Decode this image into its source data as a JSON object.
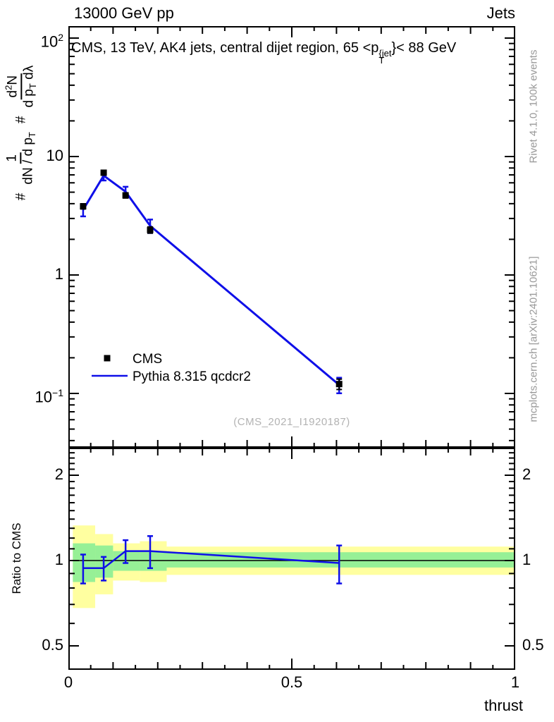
{
  "header": {
    "left": "13000 GeV pp",
    "right": "Jets"
  },
  "side_text": {
    "top": "Rivet 4.1.0,  100k events",
    "bottom": "mcplots.cern.ch [arXiv:2401.10621]"
  },
  "watermark": "(CMS_2021_I1920187)",
  "annotation_parts": {
    "pre": "CMS, 13 TeV, AK4 jets, central dijet region, 65 <p",
    "sup": "{jet",
    "sub": "T",
    "post": "}< 88 GeV"
  },
  "formula": {
    "hash1": "#",
    "num1": "1",
    "den1a": "dN / d p",
    "den1sub": "T",
    "hash2": "#",
    "num2a": "d",
    "num2sup": "2",
    "num2b": "N",
    "den2a": "d p",
    "den2sub": "T",
    "den2b": " d",
    "den2c": "λ"
  },
  "colors": {
    "model_blue": "#0f0fe8",
    "data_black": "#000000",
    "band_outer_yellow": "#ffffa0",
    "band_inner_green": "#96f096",
    "frame": "#000000",
    "gray_text": "#999999"
  },
  "chart_data": [
    {
      "type": "line",
      "panel": "main",
      "annotation": "CMS, 13 TeV, AK4 jets, central dijet region, 65 < p_T^{jet} < 88 GeV",
      "xlabel": "thrust",
      "ylabel": "# 1/(dN/d p_T) # d²N/(d p_T dλ)",
      "x_range": [
        0,
        1
      ],
      "y_range_log": [
        0.036,
        126
      ],
      "y_scale": "log10",
      "grid": false,
      "xticks": [
        0,
        0.5,
        1
      ],
      "yticks_major": [
        100,
        10,
        1,
        0.1
      ],
      "series": [
        {
          "name": "CMS",
          "style": "square-markers",
          "color": "#000000",
          "x": [
            0.033,
            0.079,
            0.128,
            0.183,
            0.606
          ],
          "y": [
            3.8,
            7.3,
            4.7,
            2.4,
            0.12
          ],
          "yerr_rel": [
            0.05,
            0.04,
            0.05,
            0.06,
            0.1
          ]
        },
        {
          "name": "Pythia 8.315 qcdcr2",
          "style": "line",
          "color": "#0f0fe8",
          "x": [
            0.033,
            0.079,
            0.128,
            0.183,
            0.606
          ],
          "y": [
            3.55,
            6.9,
            5.05,
            2.6,
            0.118
          ],
          "yerr_rel": [
            0.12,
            0.09,
            0.1,
            0.13,
            0.15
          ]
        }
      ],
      "legend": [
        {
          "label": "CMS",
          "marker": "square",
          "color": "#000000"
        },
        {
          "label": "Pythia 8.315 qcdcr2",
          "marker": "line",
          "color": "#0f0fe8"
        }
      ],
      "legend_position": "bottom-left-inside"
    },
    {
      "type": "ratio",
      "panel": "ratio",
      "ylabel": "Ratio to CMS",
      "y_scale": "log2",
      "y_range_log2": [
        0.41,
        2.5
      ],
      "yticks_major": [
        2,
        1,
        0.5
      ],
      "reference_line": 1,
      "x": [
        0.033,
        0.079,
        0.128,
        0.183,
        0.606
      ],
      "ratio": [
        0.94,
        0.94,
        1.08,
        1.08,
        0.98
      ],
      "ratio_err": [
        0.11,
        0.09,
        0.1,
        0.14,
        0.15
      ],
      "bands": [
        {
          "x0": 0.01,
          "x1": 0.06,
          "outer": [
            0.68,
            1.33
          ],
          "inner": [
            0.84,
            1.15
          ]
        },
        {
          "x0": 0.06,
          "x1": 0.1,
          "outer": [
            0.76,
            1.24
          ],
          "inner": [
            0.87,
            1.13
          ]
        },
        {
          "x0": 0.1,
          "x1": 0.16,
          "outer": [
            0.85,
            1.15
          ],
          "inner": [
            0.92,
            1.08
          ]
        },
        {
          "x0": 0.16,
          "x1": 0.22,
          "outer": [
            0.84,
            1.17
          ],
          "inner": [
            0.92,
            1.08
          ]
        },
        {
          "x0": 0.22,
          "x1": 1.0,
          "outer": [
            0.89,
            1.12
          ],
          "inner": [
            0.945,
            1.07
          ]
        }
      ]
    }
  ]
}
